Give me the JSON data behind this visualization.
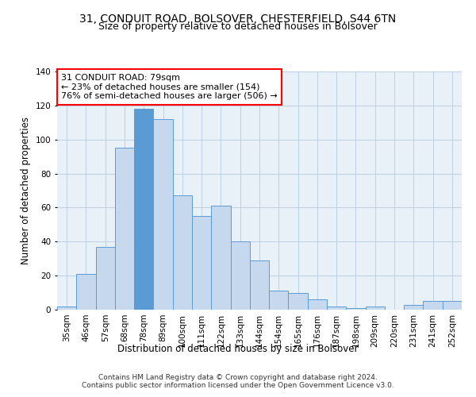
{
  "title_line1": "31, CONDUIT ROAD, BOLSOVER, CHESTERFIELD, S44 6TN",
  "title_line2": "Size of property relative to detached houses in Bolsover",
  "xlabel": "Distribution of detached houses by size in Bolsover",
  "ylabel": "Number of detached properties",
  "footer": "Contains HM Land Registry data © Crown copyright and database right 2024.\nContains public sector information licensed under the Open Government Licence v3.0.",
  "categories": [
    "35sqm",
    "46sqm",
    "57sqm",
    "68sqm",
    "78sqm",
    "89sqm",
    "100sqm",
    "111sqm",
    "122sqm",
    "133sqm",
    "144sqm",
    "154sqm",
    "165sqm",
    "176sqm",
    "187sqm",
    "198sqm",
    "209sqm",
    "220sqm",
    "231sqm",
    "241sqm",
    "252sqm"
  ],
  "values": [
    2,
    21,
    37,
    95,
    118,
    112,
    67,
    55,
    61,
    40,
    29,
    11,
    10,
    6,
    2,
    1,
    2,
    0,
    3,
    5,
    5
  ],
  "bar_color": "#c5d8ed",
  "bar_edge_color": "#5b9bd5",
  "highlight_bar_index": 4,
  "highlight_bar_color": "#5b9bd5",
  "annotation_box_text": "31 CONDUIT ROAD: 79sqm\n← 23% of detached houses are smaller (154)\n76% of semi-detached houses are larger (506) →",
  "ylim": [
    0,
    140
  ],
  "yticks": [
    0,
    20,
    40,
    60,
    80,
    100,
    120,
    140
  ],
  "background_color": "#ffffff",
  "plot_bg_color": "#e8f0f8",
  "grid_color": "#c0cfe0",
  "title_fontsize": 10,
  "subtitle_fontsize": 9,
  "axis_label_fontsize": 8.5,
  "tick_fontsize": 7.5,
  "annotation_fontsize": 8,
  "footer_fontsize": 6.5
}
